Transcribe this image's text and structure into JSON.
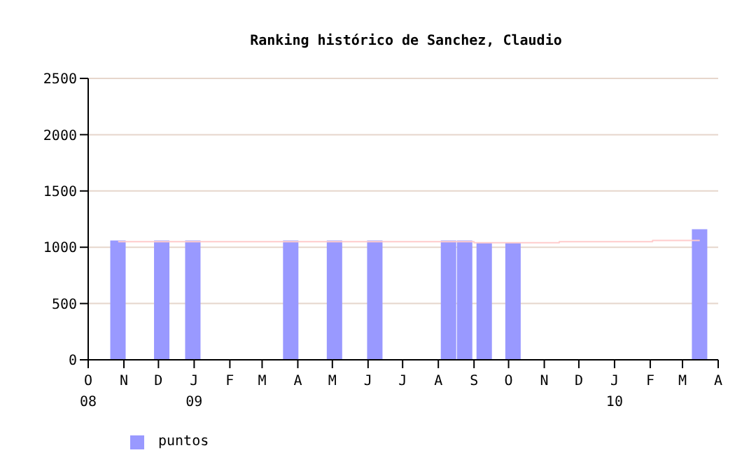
{
  "chart_data": {
    "type": "bar",
    "title": "Ranking histórico de Sanchez, Claudio",
    "x": [
      "2008-10-27",
      "2008-12-04",
      "2008-12-31",
      "2009-03-26",
      "2009-05-03",
      "2009-06-07",
      "2009-08-10",
      "2009-08-24",
      "2009-09-10",
      "2009-10-05",
      "2010-03-16"
    ],
    "series": [
      {
        "name": "puntos",
        "color": "#9999ff",
        "values": [
          1060,
          1060,
          1060,
          1060,
          1060,
          1060,
          1060,
          1060,
          1040,
          1040,
          1160
        ]
      },
      {
        "type": "step",
        "color": "#ffcccc",
        "x": [
          "2008-10-27",
          "2009-09-01",
          "2009-11-14",
          "2010-02-03",
          "2010-03-16"
        ],
        "values": [
          1050,
          1040,
          1050,
          1060,
          1060
        ]
      }
    ],
    "xlim": [
      "2008-10",
      "2010-04"
    ],
    "xticks": [
      {
        "value": "2008-10",
        "label": "O\n08"
      },
      {
        "value": "2008-11",
        "label": "N"
      },
      {
        "value": "2008-12",
        "label": "D"
      },
      {
        "value": "2009-01",
        "label": "J\n09"
      },
      {
        "value": "2009-02",
        "label": "F"
      },
      {
        "value": "2009-03",
        "label": "M"
      },
      {
        "value": "2009-04",
        "label": "A"
      },
      {
        "value": "2009-05",
        "label": "M"
      },
      {
        "value": "2009-06",
        "label": "J"
      },
      {
        "value": "2009-07",
        "label": "J"
      },
      {
        "value": "2009-08",
        "label": "A"
      },
      {
        "value": "2009-09",
        "label": "S"
      },
      {
        "value": "2009-10",
        "label": "O"
      },
      {
        "value": "2009-11",
        "label": "N"
      },
      {
        "value": "2009-12",
        "label": "D"
      },
      {
        "value": "2010-01",
        "label": "J\n10"
      },
      {
        "value": "2010-02",
        "label": "F"
      },
      {
        "value": "2010-03",
        "label": "M"
      },
      {
        "value": "2010-04",
        "label": "A"
      }
    ],
    "ylim": [
      0,
      2500
    ],
    "yticks": [
      0,
      500,
      1000,
      1500,
      2000,
      2500
    ],
    "grid": "y",
    "legend": "bottom left"
  }
}
